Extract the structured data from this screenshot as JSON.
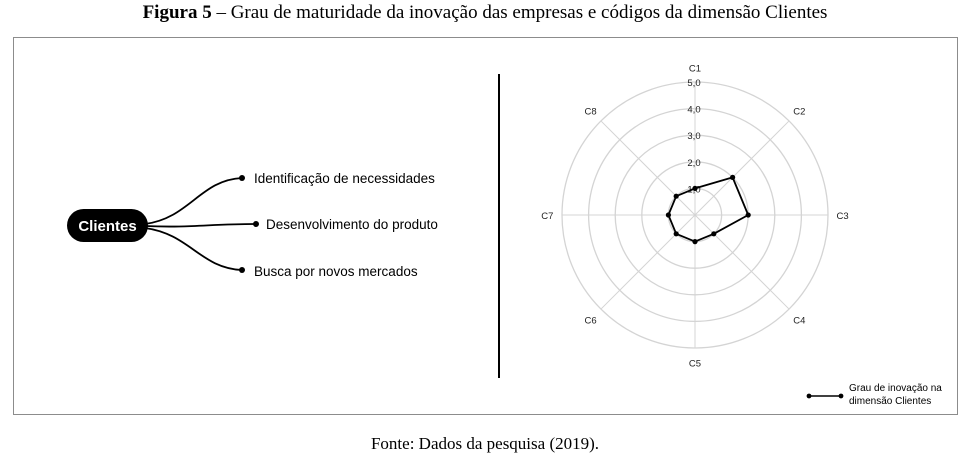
{
  "caption": {
    "label": "Figura 5",
    "text": " – Grau de maturidade da inovação das empresas e códigos da dimensão Clientes"
  },
  "mindmap": {
    "root": "Clientes",
    "branches": [
      "Identificação de necessidades",
      "Desenvolvimento do produto",
      "Busca por novos mercados"
    ]
  },
  "chart_data": {
    "type": "radar",
    "axes": [
      "C1",
      "C2",
      "C3",
      "C4",
      "C5",
      "C6",
      "C7",
      "C8"
    ],
    "ticks": [
      "1,0",
      "2,0",
      "3,0",
      "4,0",
      "5,0"
    ],
    "rmax": 5,
    "series": [
      {
        "name": "Grau de inovação na dimensão Clientes",
        "values": [
          1,
          2,
          2,
          1,
          1,
          1,
          1,
          1
        ]
      }
    ],
    "legend": {
      "line1": "Grau de inovação na",
      "line2": "dimensão Clientes",
      "position": "bottom-right"
    }
  },
  "footer": {
    "source": "Fonte: Dados da pesquisa (2019)."
  }
}
